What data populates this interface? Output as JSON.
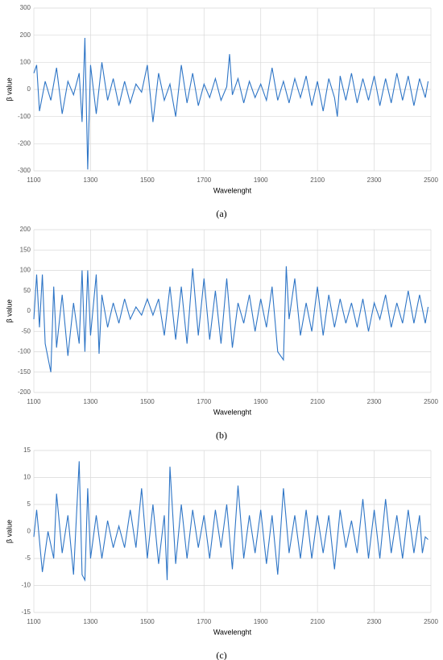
{
  "chart_data": [
    {
      "type": "line",
      "xlabel": "Wavelenght",
      "ylabel": "β value",
      "caption": "(a)",
      "xlim": [
        1100,
        2500
      ],
      "xticks": [
        1100,
        1300,
        1500,
        1700,
        1900,
        2100,
        2300,
        2500
      ],
      "ylim": [
        -300,
        300
      ],
      "yticks": [
        -300,
        -200,
        -100,
        0,
        100,
        200,
        300
      ],
      "grid": true,
      "x": [
        1100,
        1110,
        1120,
        1140,
        1160,
        1180,
        1200,
        1220,
        1240,
        1260,
        1270,
        1280,
        1290,
        1300,
        1320,
        1340,
        1360,
        1380,
        1400,
        1420,
        1440,
        1460,
        1480,
        1500,
        1520,
        1540,
        1560,
        1580,
        1600,
        1620,
        1640,
        1660,
        1680,
        1700,
        1720,
        1740,
        1760,
        1780,
        1790,
        1800,
        1820,
        1840,
        1860,
        1880,
        1900,
        1920,
        1940,
        1960,
        1980,
        2000,
        2020,
        2040,
        2060,
        2080,
        2100,
        2120,
        2140,
        2160,
        2170,
        2180,
        2200,
        2220,
        2240,
        2260,
        2280,
        2300,
        2320,
        2340,
        2360,
        2380,
        2400,
        2420,
        2440,
        2460,
        2480,
        2490
      ],
      "series": [
        {
          "color": "#2e75c6",
          "values": [
            60,
            90,
            -80,
            30,
            -40,
            80,
            -90,
            30,
            -20,
            60,
            -120,
            190,
            -295,
            90,
            -90,
            100,
            -40,
            40,
            -60,
            30,
            -50,
            20,
            -10,
            90,
            -120,
            60,
            -40,
            20,
            -100,
            90,
            -50,
            60,
            -60,
            20,
            -30,
            40,
            -40,
            10,
            130,
            -20,
            40,
            -50,
            30,
            -30,
            20,
            -40,
            80,
            -40,
            30,
            -50,
            40,
            -30,
            50,
            -60,
            30,
            -80,
            40,
            -30,
            -100,
            50,
            -40,
            60,
            -50,
            40,
            -40,
            50,
            -60,
            40,
            -50,
            60,
            -40,
            50,
            -60,
            40,
            -30,
            30
          ]
        }
      ]
    },
    {
      "type": "line",
      "xlabel": "Wavelenght",
      "ylabel": "β value",
      "caption": "(b)",
      "xlim": [
        1100,
        2500
      ],
      "xticks": [
        1100,
        1300,
        1500,
        1700,
        1900,
        2100,
        2300,
        2500
      ],
      "ylim": [
        -200,
        200
      ],
      "yticks": [
        -200,
        -150,
        -100,
        -50,
        0,
        50,
        100,
        150,
        200
      ],
      "grid": true,
      "x": [
        1100,
        1110,
        1120,
        1130,
        1140,
        1160,
        1170,
        1180,
        1200,
        1220,
        1240,
        1260,
        1270,
        1280,
        1290,
        1300,
        1320,
        1330,
        1340,
        1360,
        1380,
        1400,
        1420,
        1440,
        1460,
        1480,
        1500,
        1520,
        1540,
        1560,
        1580,
        1600,
        1620,
        1640,
        1660,
        1680,
        1700,
        1720,
        1740,
        1760,
        1780,
        1800,
        1820,
        1840,
        1860,
        1880,
        1900,
        1920,
        1940,
        1960,
        1980,
        1990,
        2000,
        2020,
        2040,
        2060,
        2080,
        2100,
        2120,
        2140,
        2160,
        2180,
        2200,
        2220,
        2240,
        2260,
        2280,
        2300,
        2320,
        2340,
        2360,
        2380,
        2400,
        2420,
        2440,
        2460,
        2480,
        2490
      ],
      "series": [
        {
          "color": "#2e75c6",
          "values": [
            -20,
            90,
            -40,
            90,
            -80,
            -150,
            60,
            -90,
            40,
            -110,
            20,
            -80,
            100,
            -100,
            100,
            -60,
            90,
            -105,
            40,
            -40,
            20,
            -30,
            30,
            -20,
            10,
            -10,
            30,
            -10,
            30,
            -60,
            60,
            -70,
            60,
            -80,
            105,
            -60,
            80,
            -70,
            50,
            -80,
            80,
            -90,
            20,
            -30,
            40,
            -50,
            30,
            -40,
            60,
            -100,
            -120,
            110,
            -20,
            80,
            -60,
            20,
            -50,
            60,
            -60,
            40,
            -40,
            30,
            -30,
            20,
            -40,
            30,
            -50,
            20,
            -20,
            40,
            -40,
            20,
            -30,
            50,
            -30,
            40,
            -30,
            10
          ]
        }
      ]
    },
    {
      "type": "line",
      "xlabel": "Wavelenght",
      "ylabel": "β value",
      "caption": "(c)",
      "xlim": [
        1100,
        2500
      ],
      "xticks": [
        1100,
        1300,
        1500,
        1700,
        1900,
        2100,
        2300,
        2500
      ],
      "ylim": [
        -15,
        15
      ],
      "yticks": [
        -15,
        -10,
        -5,
        0,
        5,
        10,
        15
      ],
      "grid": true,
      "x": [
        1100,
        1110,
        1130,
        1150,
        1170,
        1180,
        1200,
        1220,
        1240,
        1260,
        1270,
        1280,
        1290,
        1300,
        1320,
        1340,
        1360,
        1380,
        1400,
        1420,
        1440,
        1460,
        1480,
        1500,
        1520,
        1540,
        1560,
        1570,
        1580,
        1600,
        1620,
        1640,
        1660,
        1680,
        1700,
        1720,
        1740,
        1760,
        1780,
        1800,
        1820,
        1840,
        1860,
        1880,
        1900,
        1920,
        1940,
        1960,
        1980,
        2000,
        2020,
        2040,
        2060,
        2080,
        2100,
        2120,
        2140,
        2160,
        2180,
        2200,
        2220,
        2240,
        2260,
        2280,
        2300,
        2320,
        2340,
        2360,
        2380,
        2400,
        2420,
        2440,
        2460,
        2470,
        2480,
        2490
      ],
      "series": [
        {
          "color": "#2e75c6",
          "values": [
            -1,
            4,
            -7.5,
            0,
            -5,
            7,
            -4,
            3,
            -8,
            13,
            -8,
            -9,
            8,
            -5,
            3,
            -5,
            2,
            -3,
            1,
            -3,
            4,
            -3,
            8,
            -5,
            5,
            -6,
            3,
            -9,
            12,
            -6,
            5,
            -5,
            4,
            -3,
            3,
            -5,
            4,
            -3,
            5,
            -7,
            8.5,
            -5,
            3,
            -4,
            4,
            -6,
            3,
            -8,
            8,
            -4,
            3,
            -5,
            4,
            -5,
            3,
            -4,
            3,
            -7,
            4,
            -3,
            2,
            -4,
            6,
            -5,
            4,
            -5,
            6,
            -4,
            3,
            -5,
            4,
            -4,
            3,
            -4,
            -1,
            -1.5
          ]
        }
      ]
    }
  ]
}
